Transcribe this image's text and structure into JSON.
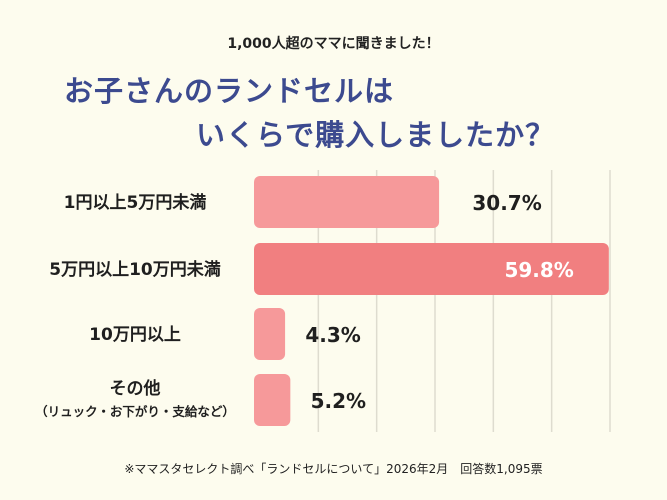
{
  "header": {
    "subtitle": "1,000人超のママに聞きました！",
    "title_line1": "お子さんのランドセルは",
    "title_line2": "いくらで購入しましたか？"
  },
  "chart_data": {
    "type": "bar",
    "orientation": "horizontal",
    "categories": [
      {
        "label": "1円以上5万円未満",
        "sublabel": ""
      },
      {
        "label": "5万円以上10万円未満",
        "sublabel": ""
      },
      {
        "label": "10万円以上",
        "sublabel": ""
      },
      {
        "label": "その他",
        "sublabel": "（リュック・お下がり・支給など）"
      }
    ],
    "values": [
      30.7,
      59.8,
      4.3,
      5.2
    ],
    "value_labels": [
      "30.7%",
      "59.8%",
      "4.3%",
      "5.2%"
    ],
    "highlight_index": 1,
    "xlim": [
      0,
      60
    ],
    "grid": true,
    "colors": {
      "bar": "#f6999a",
      "bar_highlight": "#f17f80",
      "grid": "#dedccf",
      "label": "#1f1f1f",
      "label_highlight": "#ffffff"
    }
  },
  "footnote": "※ママスタセレクト調べ「ランドセルについて」2026年2月　回答数1,095票"
}
